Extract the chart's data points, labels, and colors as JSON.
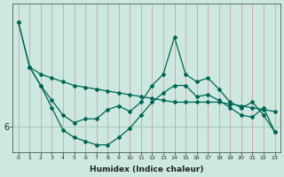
{
  "xlabel": "Humidex (Indice chaleur)",
  "bg_color": "#cce8e0",
  "line_color": "#006655",
  "vgrid_color": "#d4a0a0",
  "hgrid_color": "#a8ccc4",
  "x": [
    0,
    1,
    2,
    3,
    4,
    5,
    6,
    7,
    8,
    9,
    10,
    11,
    12,
    13,
    14,
    15,
    16,
    17,
    18,
    19,
    20,
    21,
    22,
    23
  ],
  "line1_x": [
    0,
    1,
    2,
    3,
    4,
    5,
    6,
    7,
    8,
    9,
    10,
    11,
    12,
    13,
    14,
    15,
    16,
    17,
    18,
    19,
    20,
    21,
    22,
    23
  ],
  "line1_y": [
    8.8,
    7.6,
    7.4,
    7.3,
    7.2,
    7.1,
    7.05,
    7.0,
    6.95,
    6.9,
    6.85,
    6.8,
    6.75,
    6.7,
    6.65,
    6.65,
    6.65,
    6.65,
    6.65,
    6.6,
    6.55,
    6.5,
    6.45,
    6.4
  ],
  "line2_x": [
    0,
    1,
    2,
    3,
    4,
    5,
    6,
    7,
    8,
    9,
    10,
    11,
    12,
    13,
    14,
    15,
    16,
    17,
    18,
    19,
    20,
    21,
    22,
    23
  ],
  "line2_y": [
    8.8,
    7.6,
    7.1,
    6.7,
    6.3,
    6.1,
    6.2,
    6.2,
    6.45,
    6.55,
    6.4,
    6.65,
    7.1,
    7.4,
    8.4,
    7.4,
    7.2,
    7.3,
    7.0,
    6.65,
    6.5,
    6.65,
    6.3,
    5.85
  ],
  "line3_x": [
    1,
    2,
    3,
    4,
    5,
    6,
    7,
    8,
    9,
    10,
    11,
    12,
    13,
    14,
    15,
    16,
    17,
    18,
    19,
    20,
    21,
    22,
    23
  ],
  "line3_y": [
    7.6,
    7.1,
    6.5,
    5.9,
    5.7,
    5.6,
    5.5,
    5.5,
    5.7,
    5.95,
    6.3,
    6.65,
    6.9,
    7.1,
    7.1,
    6.8,
    6.85,
    6.7,
    6.5,
    6.3,
    6.25,
    6.5,
    5.85
  ],
  "ytick_pos": 6.0,
  "ytick_label": "6",
  "xlim": [
    -0.5,
    23.5
  ],
  "ylim": [
    5.3,
    9.3
  ]
}
